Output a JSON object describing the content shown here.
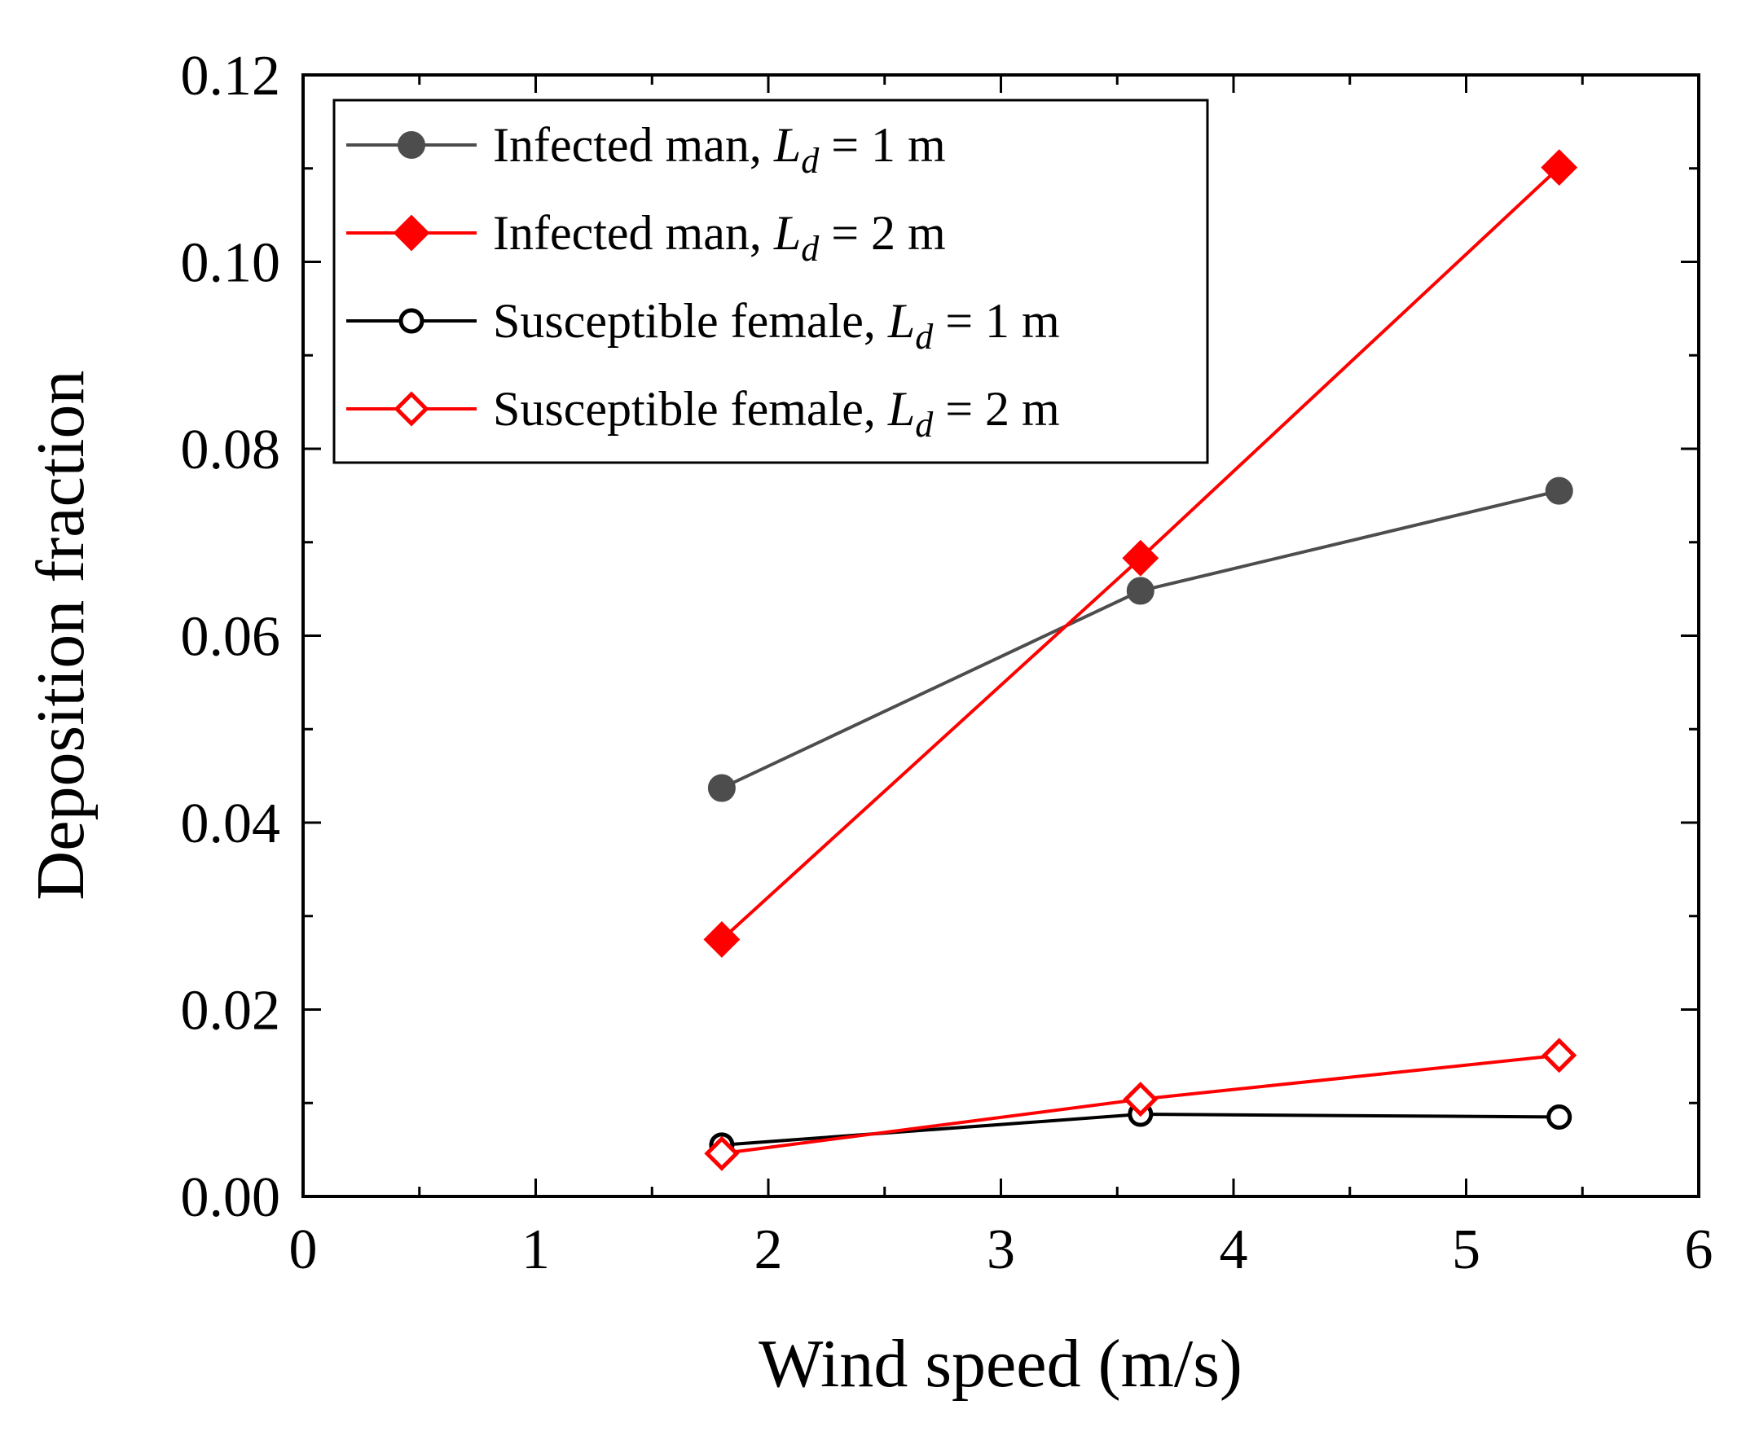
{
  "chart_data": {
    "type": "line",
    "title": "",
    "xlabel": "Wind speed (m/s)",
    "ylabel": "Deposition fraction",
    "xlim": [
      0,
      6
    ],
    "ylim": [
      0,
      0.12
    ],
    "xticks": [
      "0",
      "1",
      "2",
      "3",
      "4",
      "5",
      "6"
    ],
    "yticks": [
      "0.00",
      "0.02",
      "0.04",
      "0.06",
      "0.08",
      "0.10",
      "0.12"
    ],
    "x": [
      1.8,
      3.6,
      5.4
    ],
    "legend_position": "top-left",
    "series": [
      {
        "name": "Infected man, L_d = 1 m",
        "label_prefix": "Infected man,",
        "label_var": "L",
        "label_sub": "d",
        "label_suffix": "= 1 m",
        "color": "#4d4d4d",
        "marker": "circle",
        "filled": true,
        "values": [
          0.0437,
          0.0648,
          0.0755
        ]
      },
      {
        "name": "Infected man, L_d = 2 m",
        "label_prefix": "Infected man,",
        "label_var": "L",
        "label_sub": "d",
        "label_suffix": "= 2 m",
        "color": "#ff0000",
        "marker": "diamond",
        "filled": true,
        "values": [
          0.0275,
          0.0683,
          0.1101
        ]
      },
      {
        "name": "Susceptible female, L_d = 1 m",
        "label_prefix": "Susceptible female,",
        "label_var": "L",
        "label_sub": "d",
        "label_suffix": "= 1 m",
        "color": "#000000",
        "marker": "circle",
        "filled": false,
        "values": [
          0.0055,
          0.0088,
          0.0085
        ]
      },
      {
        "name": "Susceptible female, L_d = 2 m",
        "label_prefix": "Susceptible female,",
        "label_var": "L",
        "label_sub": "d",
        "label_suffix": "= 2 m",
        "color": "#ff0000",
        "marker": "diamond",
        "filled": false,
        "values": [
          0.0046,
          0.0104,
          0.0151
        ]
      }
    ]
  }
}
